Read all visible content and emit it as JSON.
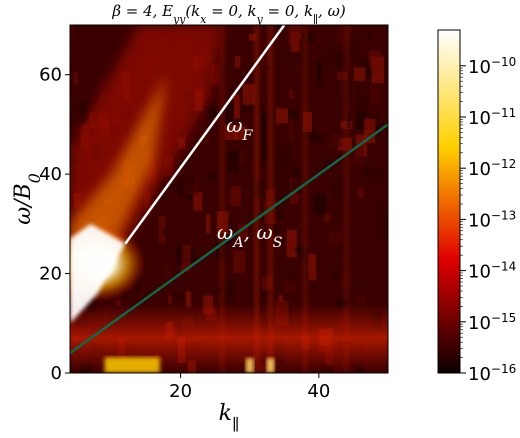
{
  "chart_data": {
    "type": "heatmap",
    "title": "β = 4, E_yy(k_x = 0, k_y = 0, k_∥, ω)",
    "xlabel": "k_∥",
    "ylabel": "ω/B_0",
    "xlim": [
      4,
      50
    ],
    "ylim": [
      0,
      70
    ],
    "x_ticks": [
      20,
      40
    ],
    "y_ticks": [
      0,
      20,
      40,
      60
    ],
    "colorbar": {
      "scale": "log",
      "range": [
        1e-16,
        5e-10
      ],
      "tick_exponents": [
        -16,
        -15,
        -14,
        -13,
        -12,
        -11,
        -10
      ],
      "tick_labels": [
        "10−16",
        "10−15",
        "10−14",
        "10−13",
        "10−12",
        "10−11",
        "10−10"
      ],
      "colormap": "hot"
    },
    "lines": [
      {
        "name": "ω_F",
        "color": "#ffffff",
        "style": "solid",
        "points": [
          [
            12,
            26
          ],
          [
            35,
            70
          ]
        ]
      },
      {
        "name": "ω_A",
        "color": "#008000",
        "style": "solid",
        "points": [
          [
            4,
            4
          ],
          [
            50,
            50
          ]
        ]
      },
      {
        "name": "ω_S",
        "color": "#2a3bd8",
        "style": "dotted",
        "points": [
          [
            4,
            4
          ],
          [
            50,
            50
          ]
        ]
      }
    ],
    "annotations": [
      {
        "text": "ω_F",
        "x": 28.5,
        "y": 48.5
      },
      {
        "text": "ω_A, ω_S",
        "x": 30,
        "y": 27
      }
    ],
    "grid": false
  }
}
